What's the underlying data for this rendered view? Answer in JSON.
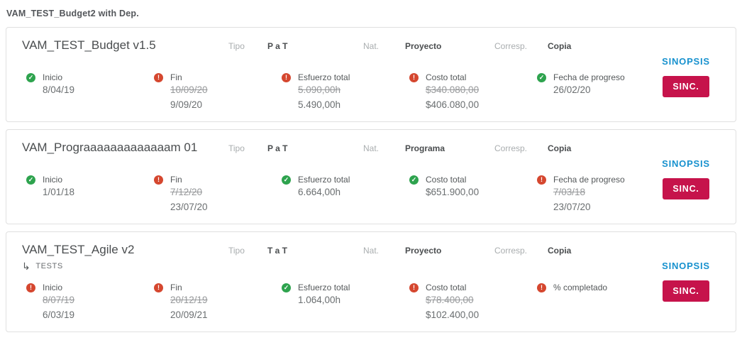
{
  "page": {
    "title": "VAM_TEST_Budget2 with Dep."
  },
  "labels": {
    "tipo": "Tipo",
    "nat": "Nat.",
    "corresp": "Corresp."
  },
  "actions": {
    "sinopsis": "SINOPSIS",
    "sinc": "SINC."
  },
  "icons": {
    "ok": "check-circle",
    "error": "exclamation-circle",
    "subtask_arrow": "↳"
  },
  "colors": {
    "ok_green": "#2ea34e",
    "error_red": "#d5472f",
    "sinopsis_blue": "#1791ce",
    "sinc_crimson": "#c6134b"
  },
  "cards": [
    {
      "title": "VAM_TEST_Budget v1.5",
      "tipo": "P a T",
      "nat": "Proyecto",
      "corresp": "Copia",
      "fields": [
        {
          "label": "Inicio",
          "status": "ok",
          "old": null,
          "value": "8/04/19"
        },
        {
          "label": "Fin",
          "status": "error",
          "old": "10/09/20",
          "value": "9/09/20"
        },
        {
          "label": "Esfuerzo total",
          "status": "error",
          "old": "5.090,00h",
          "value": "5.490,00h"
        },
        {
          "label": "Costo total",
          "status": "error",
          "old": "$340.080,00",
          "value": "$406.080,00"
        },
        {
          "label": "Fecha de progreso",
          "status": "ok",
          "old": null,
          "value": "26/02/20"
        }
      ]
    },
    {
      "title": "VAM_Prograaaaaaaaaaaaam 01",
      "tipo": "P a T",
      "nat": "Programa",
      "corresp": "Copia",
      "fields": [
        {
          "label": "Inicio",
          "status": "ok",
          "old": null,
          "value": "1/01/18"
        },
        {
          "label": "Fin",
          "status": "error",
          "old": "7/12/20",
          "value": "23/07/20"
        },
        {
          "label": "Esfuerzo total",
          "status": "ok",
          "old": null,
          "value": "6.664,00h"
        },
        {
          "label": "Costo total",
          "status": "ok",
          "old": null,
          "value": "$651.900,00"
        },
        {
          "label": "Fecha de progreso",
          "status": "error",
          "old": "7/03/18",
          "value": "23/07/20"
        }
      ]
    },
    {
      "title": "VAM_TEST_Agile v2",
      "subtitle": "TESTS",
      "tipo": "T a T",
      "nat": "Proyecto",
      "corresp": "Copia",
      "fields": [
        {
          "label": "Inicio",
          "status": "error",
          "old": "8/07/19",
          "value": "6/03/19"
        },
        {
          "label": "Fin",
          "status": "error",
          "old": "20/12/19",
          "value": "20/09/21"
        },
        {
          "label": "Esfuerzo total",
          "status": "ok",
          "old": null,
          "value": "1.064,00h"
        },
        {
          "label": "Costo total",
          "status": "error",
          "old": "$78.400,00",
          "value": "$102.400,00"
        },
        {
          "label": "% completado",
          "status": "error",
          "old": null,
          "value": null
        }
      ]
    }
  ]
}
